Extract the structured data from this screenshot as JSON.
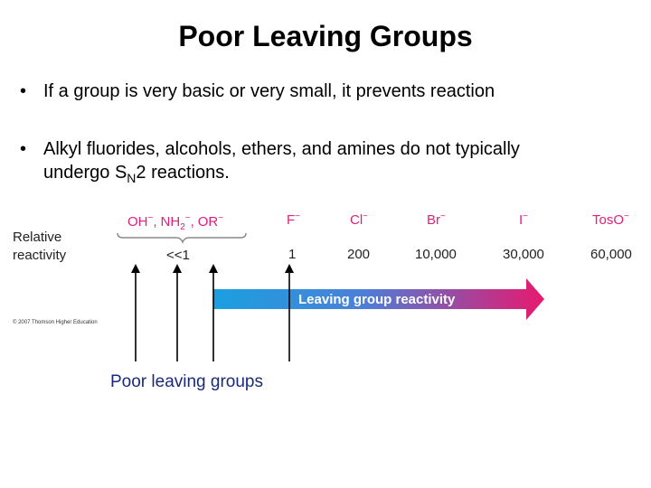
{
  "title": "Poor Leaving Groups",
  "bullets": [
    {
      "marker": "•",
      "text": "If a group is very basic or very small, it prevents reaction"
    },
    {
      "marker": "•",
      "line1": "Alkyl fluorides, alcohols, ethers, and amines do not typically",
      "line2_pre": "undergo S",
      "line2_sub": "N",
      "line2_post": "2 reactions."
    }
  ],
  "figure": {
    "row_labels": [
      "Relative",
      "reactivity"
    ],
    "groups": {
      "poor_bracket": {
        "oh": "OH",
        "nh": "NH",
        "nh_sub": "2",
        "or": "OR",
        "minus": "−",
        "comma": ",",
        "value": "<<1"
      },
      "items": [
        {
          "name": "F",
          "value": "1"
        },
        {
          "name": "Cl",
          "value": "200"
        },
        {
          "name": "Br",
          "value": "10,000"
        },
        {
          "name": "I",
          "value": "30,000"
        },
        {
          "name": "TosO",
          "value": "60,000"
        }
      ]
    },
    "arrow_label": "Leaving group reactivity",
    "credit": "© 2007 Thomson Higher Education",
    "colors": {
      "label_red": "#e0207a",
      "arrow_start": "#1aa0e0",
      "arrow_end": "#e8186e",
      "caption": "#1a2a7a"
    }
  },
  "caption": "Poor leaving groups"
}
